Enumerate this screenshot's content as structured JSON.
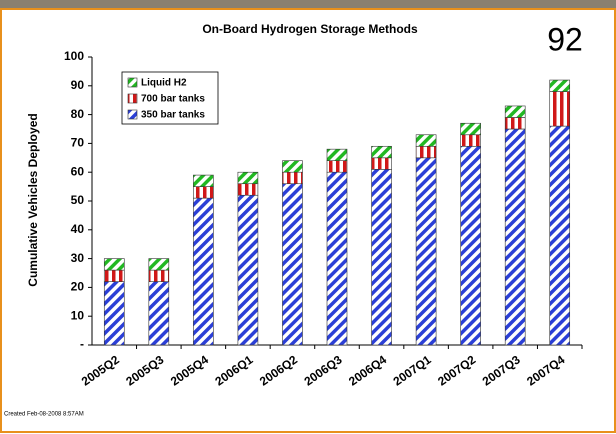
{
  "chart_data": {
    "type": "stacked_bar",
    "title": "On-Board  Hydrogen Storage Methods",
    "annotation": "92",
    "footnote": "Created Feb-08-2008 8:57AM",
    "y_label": "Cumulative Vehicles Deployed",
    "categories": [
      "2005Q2",
      "2005Q3",
      "2005Q4",
      "2006Q1",
      "2006Q2",
      "2006Q3",
      "2006Q4",
      "2007Q1",
      "2007Q2",
      "2007Q3",
      "2007Q4"
    ],
    "series": [
      {
        "name": "350 bar tanks",
        "color": "#2b3fd6",
        "hatch": "diagonal",
        "values": [
          22,
          22,
          51,
          52,
          56,
          60,
          61,
          65,
          69,
          75,
          76
        ]
      },
      {
        "name": "700 bar tanks",
        "color": "#d01818",
        "hatch": "vertical",
        "values": [
          4,
          4,
          4,
          4,
          4,
          4,
          4,
          4,
          4,
          4,
          12
        ]
      },
      {
        "name": "Liquid H2",
        "color": "#22b822",
        "hatch": "diagonal",
        "values": [
          4,
          4,
          4,
          4,
          4,
          4,
          4,
          4,
          4,
          4,
          4
        ]
      }
    ],
    "ylim": [
      0,
      100
    ],
    "yticks": [
      {
        "value": 0,
        "label": "-"
      },
      10,
      20,
      30,
      40,
      50,
      60,
      70,
      80,
      90,
      100
    ],
    "legend": "upper left"
  }
}
